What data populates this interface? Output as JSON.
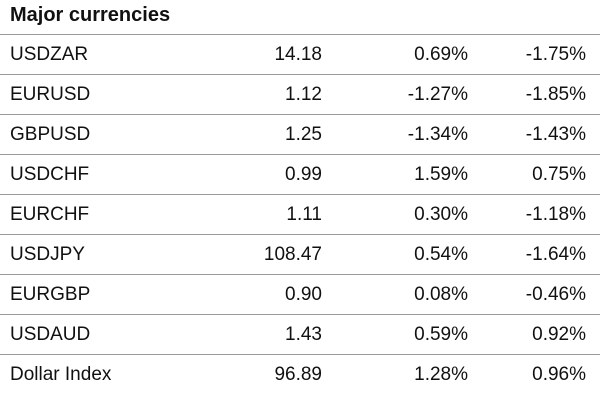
{
  "title": "Major currencies",
  "rows": [
    {
      "name": "USDZAR",
      "rate": "14.18",
      "change1": "0.69%",
      "change2": "-1.75%"
    },
    {
      "name": "EURUSD",
      "rate": "1.12",
      "change1": "-1.27%",
      "change2": "-1.85%"
    },
    {
      "name": "GBPUSD",
      "rate": "1.25",
      "change1": "-1.34%",
      "change2": "-1.43%"
    },
    {
      "name": "USDCHF",
      "rate": "0.99",
      "change1": "1.59%",
      "change2": "0.75%"
    },
    {
      "name": "EURCHF",
      "rate": "1.11",
      "change1": "0.30%",
      "change2": "-1.18%"
    },
    {
      "name": "USDJPY",
      "rate": "108.47",
      "change1": "0.54%",
      "change2": "-1.64%"
    },
    {
      "name": "EURGBP",
      "rate": "0.90",
      "change1": "0.08%",
      "change2": "-0.46%"
    },
    {
      "name": "USDAUD",
      "rate": "1.43",
      "change1": "0.59%",
      "change2": "0.92%"
    },
    {
      "name": "Dollar Index",
      "rate": "96.89",
      "change1": "1.28%",
      "change2": "0.96%"
    }
  ]
}
